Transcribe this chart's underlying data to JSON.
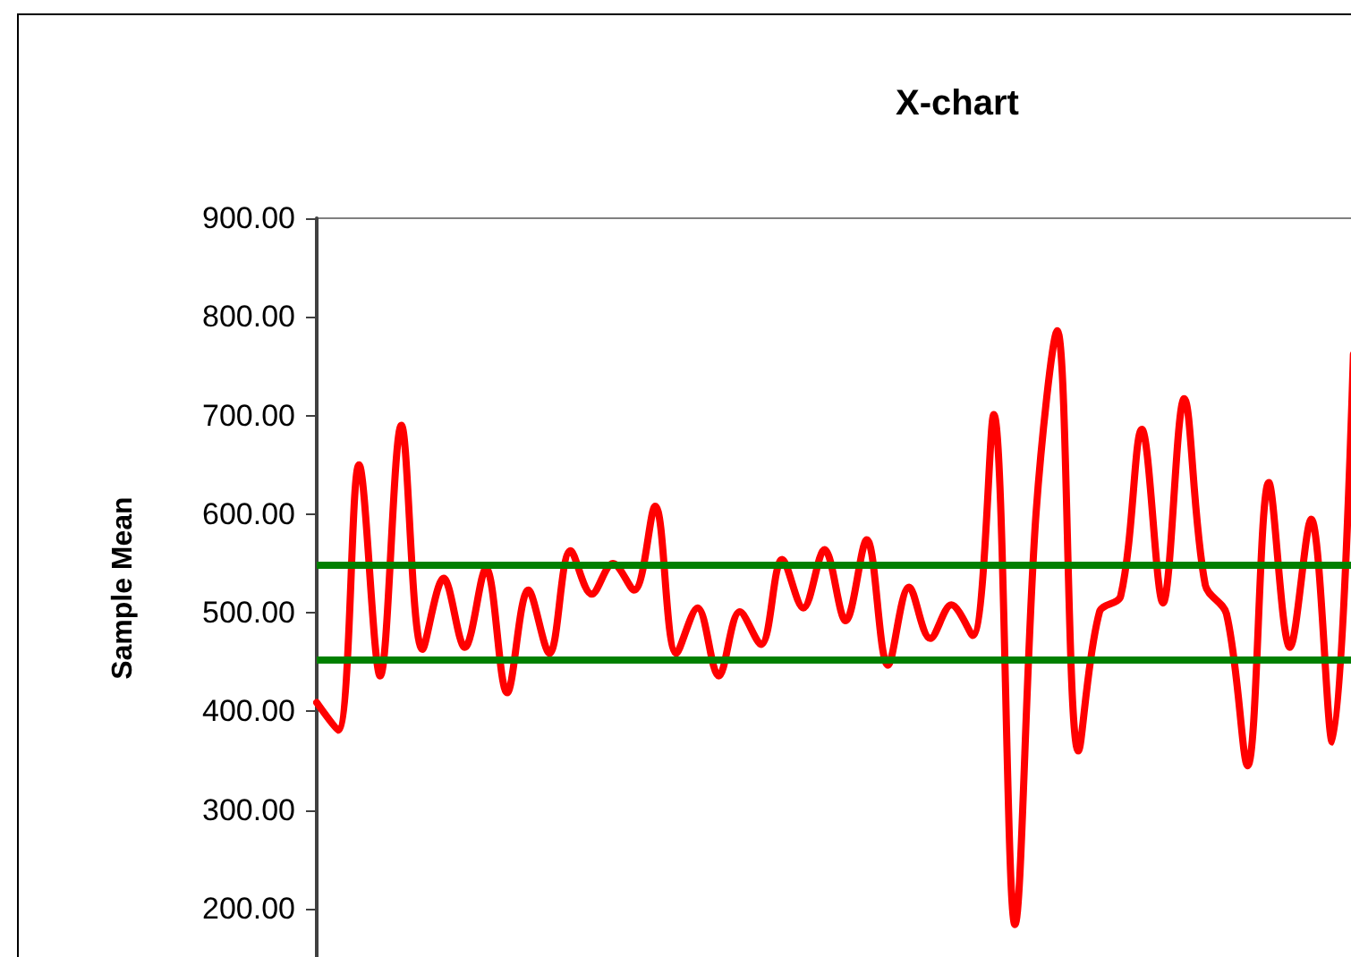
{
  "chart_data": {
    "type": "line",
    "title": "X-chart",
    "ylabel": "Sample Mean",
    "categories": [
      null,
      null,
      null,
      null,
      null,
      null,
      null,
      null,
      null,
      null,
      null,
      null,
      null,
      null,
      null,
      null,
      null,
      null,
      null,
      null,
      null,
      null,
      null,
      null,
      null,
      null,
      null,
      null,
      null,
      null,
      null,
      null,
      null,
      null,
      null,
      null,
      null,
      null,
      null,
      null,
      null,
      null,
      null,
      null,
      null,
      null,
      null,
      null,
      null,
      null,
      null,
      null
    ],
    "series": [
      {
        "color": "#ff0000",
        "values": [
          409,
          381,
          650,
          436,
          690,
          463,
          535,
          465,
          545,
          419,
          523,
          459,
          563,
          519,
          550,
          523,
          608,
          459,
          505,
          436,
          501,
          468,
          554,
          505,
          564,
          492,
          574,
          447,
          526,
          474,
          508,
          477,
          701,
          184,
          601,
          786,
          360,
          501,
          517,
          686,
          510,
          717,
          528,
          499,
          345,
          632,
          465,
          595,
          369,
          762,
          null,
          null
        ]
      }
    ],
    "ylim": [
      150,
      900
    ],
    "yticks": [
      {
        "value": 200,
        "label": "200.00"
      },
      {
        "value": 300,
        "label": "300.00"
      },
      {
        "value": 400,
        "label": "400.00"
      },
      {
        "value": 500,
        "label": "500.00"
      },
      {
        "value": 600,
        "label": "600.00"
      },
      {
        "value": 700,
        "label": "700.00"
      },
      {
        "value": 800,
        "label": "800.00"
      },
      {
        "value": 900,
        "label": "900.00"
      }
    ],
    "ref_lines": [
      {
        "axis": "y",
        "value": 548,
        "color": "#008000"
      },
      {
        "axis": "y",
        "value": 452,
        "color": "#008000"
      }
    ]
  }
}
